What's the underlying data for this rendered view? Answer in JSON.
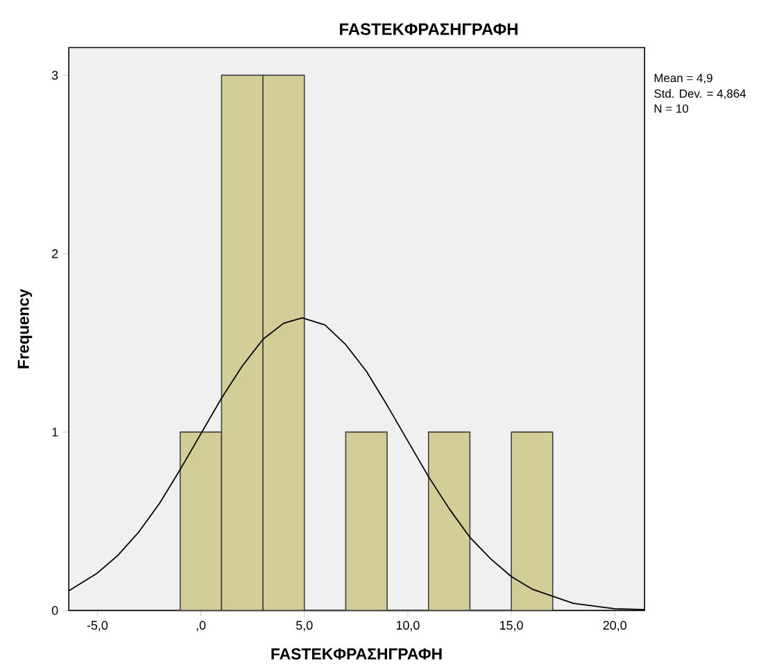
{
  "chart_data": {
    "type": "histogram",
    "title": "FASTEKΦΡΑΣΗΓΡΑΦΗ",
    "xlabel": "FASTEKΦΡΑΣΗΓΡΑΦΗ",
    "ylabel": "Frequency",
    "bins": [
      -1,
      1,
      3,
      5,
      7,
      9,
      11,
      13,
      15,
      17
    ],
    "values": [
      1,
      3,
      3,
      0,
      1,
      0,
      1,
      0,
      1
    ],
    "color": "#d3ce97",
    "series": [
      {
        "type": "line",
        "color": "#000000",
        "x": [
          -6.38,
          -5,
          -4,
          -3,
          -2,
          -1,
          0,
          1,
          2,
          3,
          4,
          4.9,
          6,
          7,
          8,
          9,
          10,
          11,
          12,
          13,
          14,
          15,
          16,
          18,
          20,
          21.44
        ],
        "values": [
          0.11,
          0.21,
          0.31,
          0.44,
          0.6,
          0.79,
          0.99,
          1.19,
          1.37,
          1.52,
          1.61,
          1.64,
          1.6,
          1.49,
          1.34,
          1.15,
          0.95,
          0.75,
          0.57,
          0.41,
          0.29,
          0.19,
          0.12,
          0.04,
          0.01,
          0.005
        ]
      }
    ],
    "xlim": [
      -6.38,
      21.44
    ],
    "ylim": [
      0,
      3.155
    ],
    "xticks": [
      {
        "value": -5,
        "label": "-5,0"
      },
      {
        "value": 0,
        "label": ",0"
      },
      {
        "value": 5,
        "label": "5,0"
      },
      {
        "value": 10,
        "label": "10,0"
      },
      {
        "value": 15,
        "label": "15,0"
      },
      {
        "value": 20,
        "label": "20,0"
      }
    ],
    "yticks": [
      0,
      1,
      2,
      3
    ],
    "annotations": [
      "Mean = 4,9",
      "Std. Dev. = 4,864",
      "N = 10"
    ]
  }
}
